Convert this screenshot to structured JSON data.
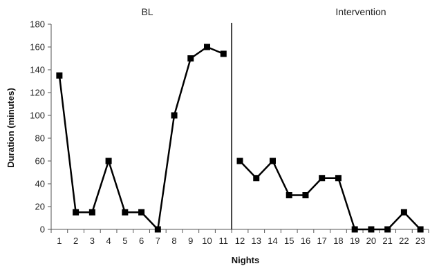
{
  "chart_data": {
    "type": "line",
    "xlabel": "Nights",
    "ylabel": "Duration (minutes)",
    "ylim": [
      0,
      180
    ],
    "yticks": [
      0,
      20,
      40,
      60,
      80,
      100,
      120,
      140,
      160,
      180
    ],
    "x": [
      1,
      2,
      3,
      4,
      5,
      6,
      7,
      8,
      9,
      10,
      11,
      12,
      13,
      14,
      15,
      16,
      17,
      18,
      19,
      20,
      21,
      22,
      23
    ],
    "phases": [
      {
        "label": "BL",
        "x": [
          1,
          2,
          3,
          4,
          5,
          6,
          7,
          8,
          9,
          10,
          11
        ],
        "values": [
          135,
          15,
          15,
          60,
          15,
          15,
          0,
          100,
          150,
          160,
          154
        ]
      },
      {
        "label": "Intervention",
        "x": [
          12,
          13,
          14,
          15,
          16,
          17,
          18,
          19,
          20,
          21,
          22,
          23
        ],
        "values": [
          60,
          45,
          60,
          30,
          30,
          45,
          45,
          0,
          0,
          0,
          15,
          0
        ]
      }
    ],
    "phase_change_after_x": 11,
    "marker": "square",
    "line_color": "#000000",
    "grid": false,
    "legend": "none"
  }
}
